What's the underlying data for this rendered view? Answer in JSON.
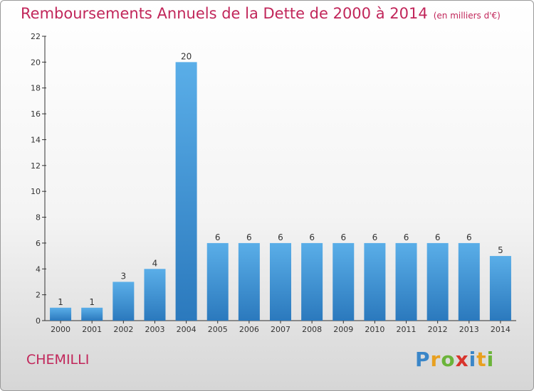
{
  "title": "Remboursements Annuels de la Dette de 2000 à 2014",
  "subtitle": "(en milliers d'€)",
  "commune": "CHEMILLI",
  "logo": {
    "letters": [
      "P",
      "r",
      "o",
      "x",
      "i",
      "t",
      "i"
    ],
    "colors": [
      "#3a86c8",
      "#e8a020",
      "#6bb43a",
      "#d8342c",
      "#3a86c8",
      "#e8a020",
      "#6bb43a"
    ]
  },
  "colors": {
    "accent": "#c1265a",
    "bar_top": "#5aaee8",
    "bar_bottom": "#2b79bd"
  },
  "chart_data": {
    "type": "bar",
    "title": "Remboursements Annuels de la Dette de 2000 à 2014",
    "subtitle": "(en milliers d'€)",
    "categories": [
      "2000",
      "2001",
      "2002",
      "2003",
      "2004",
      "2005",
      "2006",
      "2007",
      "2008",
      "2009",
      "2010",
      "2011",
      "2012",
      "2013",
      "2014"
    ],
    "values": [
      1,
      1,
      3,
      4,
      20,
      6,
      6,
      6,
      6,
      6,
      6,
      6,
      6,
      6,
      5
    ],
    "ylim": [
      0,
      22
    ],
    "yticks": [
      0,
      2,
      4,
      6,
      8,
      10,
      12,
      14,
      16,
      18,
      20,
      22
    ],
    "xlabel": "",
    "ylabel": "",
    "grid": false,
    "legend": "none"
  }
}
